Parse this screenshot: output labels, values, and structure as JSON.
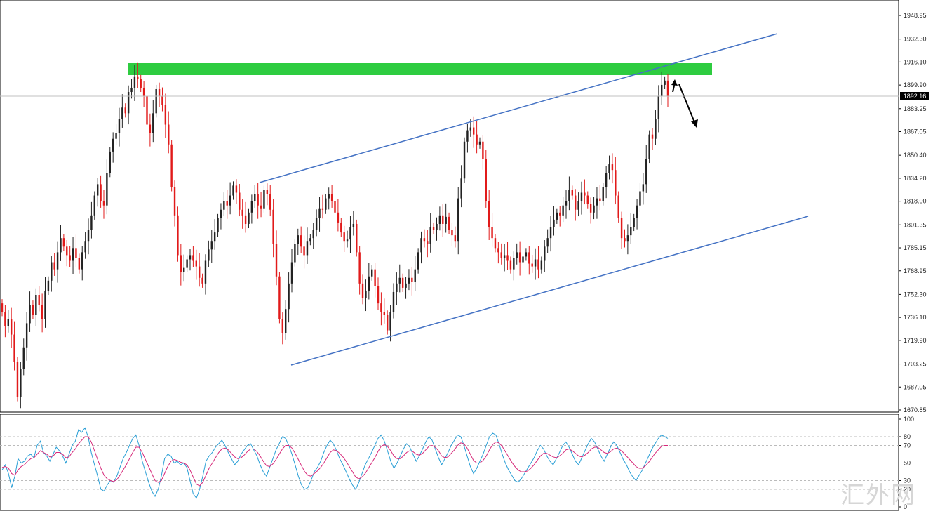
{
  "chart_data": [
    {
      "type": "candlestick",
      "ylim": [
        1670.85,
        1960
      ],
      "y_ticks": [
        "1948.95",
        "1932.30",
        "1916.10",
        "1899.90",
        "1883.25",
        "1867.05",
        "1850.40",
        "1834.20",
        "1818.00",
        "1801.35",
        "1785.15",
        "1768.95",
        "1752.30",
        "1736.10",
        "1719.90",
        "1703.25",
        "1687.05",
        "1670.85"
      ],
      "current_price": "1892.16",
      "colors": {
        "up": "#222222",
        "down": "#e11a1a",
        "channel": "#4472c4",
        "resistance": "#2ecc40",
        "grid": "#bbbbbb"
      },
      "closes": [
        1740,
        1730,
        1735,
        1724,
        1705,
        1680,
        1700,
        1715,
        1732,
        1745,
        1738,
        1752,
        1745,
        1735,
        1755,
        1762,
        1775,
        1770,
        1782,
        1792,
        1786,
        1780,
        1776,
        1785,
        1778,
        1770,
        1782,
        1790,
        1798,
        1808,
        1822,
        1830,
        1818,
        1815,
        1838,
        1853,
        1862,
        1866,
        1876,
        1884,
        1880,
        1895,
        1898,
        1906,
        1904,
        1898,
        1892,
        1872,
        1866,
        1880,
        1897,
        1892,
        1886,
        1872,
        1858,
        1828,
        1808,
        1780,
        1768,
        1771,
        1777,
        1780,
        1776,
        1772,
        1764,
        1760,
        1776,
        1784,
        1790,
        1796,
        1806,
        1812,
        1818,
        1815,
        1822,
        1829,
        1824,
        1812,
        1808,
        1802,
        1810,
        1818,
        1823,
        1815,
        1813,
        1826,
        1823,
        1812,
        1788,
        1765,
        1735,
        1725,
        1742,
        1760,
        1775,
        1788,
        1794,
        1786,
        1780,
        1790,
        1792,
        1798,
        1806,
        1813,
        1812,
        1820,
        1823,
        1818,
        1810,
        1803,
        1796,
        1790,
        1791,
        1800,
        1802,
        1782,
        1760,
        1750,
        1755,
        1765,
        1770,
        1758,
        1746,
        1740,
        1738,
        1727,
        1740,
        1754,
        1760,
        1764,
        1757,
        1760,
        1764,
        1761,
        1770,
        1782,
        1792,
        1790,
        1788,
        1800,
        1798,
        1802,
        1808,
        1802,
        1807,
        1798,
        1794,
        1790,
        1820,
        1834,
        1860,
        1868,
        1870,
        1865,
        1858,
        1860,
        1848,
        1818,
        1800,
        1792,
        1785,
        1782,
        1778,
        1780,
        1776,
        1770,
        1778,
        1782,
        1775,
        1779,
        1782,
        1774,
        1772,
        1777,
        1770,
        1776,
        1786,
        1792,
        1800,
        1805,
        1810,
        1808,
        1815,
        1818,
        1826,
        1822,
        1812,
        1818,
        1824,
        1822,
        1816,
        1810,
        1815,
        1820,
        1818,
        1828,
        1838,
        1844,
        1840,
        1822,
        1806,
        1792,
        1790,
        1794,
        1800,
        1806,
        1815,
        1825,
        1830,
        1848,
        1865,
        1862,
        1876,
        1892,
        1900,
        1903,
        1892
      ]
    },
    {
      "type": "line",
      "ylim": [
        0,
        100
      ],
      "y_ticks": [
        "100",
        "80",
        "70",
        "50",
        "30",
        "20",
        "0"
      ],
      "ref_levels": [
        80,
        70,
        50,
        30,
        20
      ],
      "series": [
        {
          "color": "#2a9fd6",
          "values": [
            42,
            48,
            38,
            22,
            35,
            55,
            50,
            52,
            58,
            60,
            56,
            70,
            75,
            62,
            58,
            52,
            60,
            68,
            64,
            58,
            50,
            60,
            70,
            75,
            88,
            85,
            90,
            80,
            62,
            48,
            35,
            20,
            18,
            25,
            30,
            28,
            35,
            45,
            55,
            62,
            70,
            78,
            82,
            70,
            52,
            40,
            28,
            18,
            12,
            20,
            35,
            55,
            60,
            58,
            50,
            52,
            48,
            50,
            45,
            30,
            15,
            10,
            20,
            35,
            52,
            58,
            62,
            68,
            72,
            76,
            70,
            62,
            55,
            48,
            52,
            60,
            65,
            70,
            72,
            65,
            58,
            48,
            40,
            35,
            45,
            55,
            65,
            72,
            80,
            78,
            70,
            60,
            48,
            35,
            25,
            20,
            22,
            30,
            40,
            45,
            52,
            62,
            70,
            76,
            72,
            64,
            55,
            48,
            40,
            32,
            25,
            20,
            28,
            38,
            48,
            55,
            62,
            70,
            78,
            82,
            75,
            64,
            52,
            44,
            50,
            58,
            66,
            72,
            68,
            60,
            52,
            58,
            66,
            74,
            80,
            76,
            66,
            56,
            48,
            55,
            62,
            70,
            76,
            82,
            80,
            70,
            58,
            46,
            38,
            44,
            52,
            60,
            70,
            80,
            84,
            82,
            72,
            60,
            50,
            42,
            36,
            30,
            28,
            32,
            38,
            44,
            50,
            56,
            64,
            70,
            66,
            58,
            52,
            48,
            55,
            62,
            70,
            74,
            68,
            60,
            52,
            48,
            56,
            64,
            72,
            78,
            74,
            66,
            58,
            52,
            60,
            68,
            74,
            70,
            62,
            54,
            48,
            40,
            34,
            30,
            36,
            42,
            50,
            58,
            66,
            72,
            78,
            82,
            80,
            78
          ]
        },
        {
          "color": "#d6297a",
          "values": [
            45,
            46,
            44,
            38,
            36,
            42,
            46,
            48,
            52,
            55,
            56,
            60,
            64,
            62,
            60,
            57,
            58,
            62,
            62,
            60,
            56,
            57,
            62,
            66,
            72,
            76,
            80,
            80,
            74,
            64,
            54,
            44,
            36,
            32,
            30,
            29,
            31,
            36,
            42,
            48,
            55,
            62,
            68,
            68,
            62,
            54,
            46,
            38,
            30,
            28,
            30,
            38,
            46,
            52,
            54,
            53,
            51,
            50,
            48,
            42,
            34,
            26,
            24,
            28,
            36,
            44,
            50,
            56,
            62,
            66,
            67,
            65,
            61,
            57,
            55,
            56,
            59,
            63,
            66,
            66,
            63,
            58,
            52,
            47,
            46,
            49,
            54,
            60,
            66,
            70,
            70,
            67,
            61,
            54,
            47,
            40,
            36,
            35,
            38,
            41,
            45,
            50,
            56,
            62,
            65,
            64,
            61,
            57,
            52,
            46,
            40,
            34,
            32,
            34,
            38,
            44,
            50,
            56,
            63,
            69,
            71,
            69,
            64,
            58,
            55,
            55,
            58,
            62,
            64,
            63,
            60,
            59,
            61,
            65,
            69,
            70,
            68,
            64,
            58,
            56,
            57,
            61,
            65,
            70,
            73,
            72,
            67,
            60,
            53,
            50,
            50,
            53,
            58,
            65,
            71,
            74,
            73,
            69,
            63,
            57,
            51,
            46,
            42,
            40,
            40,
            41,
            44,
            48,
            53,
            58,
            61,
            61,
            59,
            57,
            56,
            58,
            61,
            65,
            66,
            64,
            61,
            58,
            57,
            59,
            62,
            66,
            68,
            68,
            65,
            62,
            61,
            63,
            66,
            67,
            65,
            62,
            58,
            54,
            50,
            46,
            44,
            44,
            47,
            51,
            56,
            61,
            65,
            69,
            70,
            70
          ]
        }
      ]
    }
  ]
}
